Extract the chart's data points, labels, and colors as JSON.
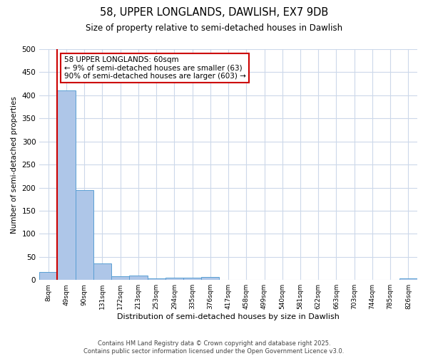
{
  "title1": "58, UPPER LONGLANDS, DAWLISH, EX7 9DB",
  "title2": "Size of property relative to semi-detached houses in Dawlish",
  "xlabel": "Distribution of semi-detached houses by size in Dawlish",
  "ylabel": "Number of semi-detached properties",
  "categories": [
    "8sqm",
    "49sqm",
    "90sqm",
    "131sqm",
    "172sqm",
    "213sqm",
    "253sqm",
    "294sqm",
    "335sqm",
    "376sqm",
    "417sqm",
    "458sqm",
    "499sqm",
    "540sqm",
    "581sqm",
    "622sqm",
    "663sqm",
    "703sqm",
    "744sqm",
    "785sqm",
    "826sqm"
  ],
  "values": [
    18,
    410,
    195,
    36,
    8,
    10,
    3,
    5,
    5,
    6,
    0,
    0,
    0,
    0,
    0,
    0,
    0,
    0,
    0,
    0,
    4
  ],
  "bar_color": "#aec6e8",
  "bar_edge_color": "#5a9fd4",
  "vline_color": "#cc0000",
  "annotation_text": "58 UPPER LONGLANDS: 60sqm\n← 9% of semi-detached houses are smaller (63)\n90% of semi-detached houses are larger (603) →",
  "annotation_box_color": "#cc0000",
  "ylim": [
    0,
    500
  ],
  "yticks": [
    0,
    50,
    100,
    150,
    200,
    250,
    300,
    350,
    400,
    450,
    500
  ],
  "footer_text": "Contains HM Land Registry data © Crown copyright and database right 2025.\nContains public sector information licensed under the Open Government Licence v3.0.",
  "background_color": "#ffffff",
  "grid_color": "#ccd8ea"
}
